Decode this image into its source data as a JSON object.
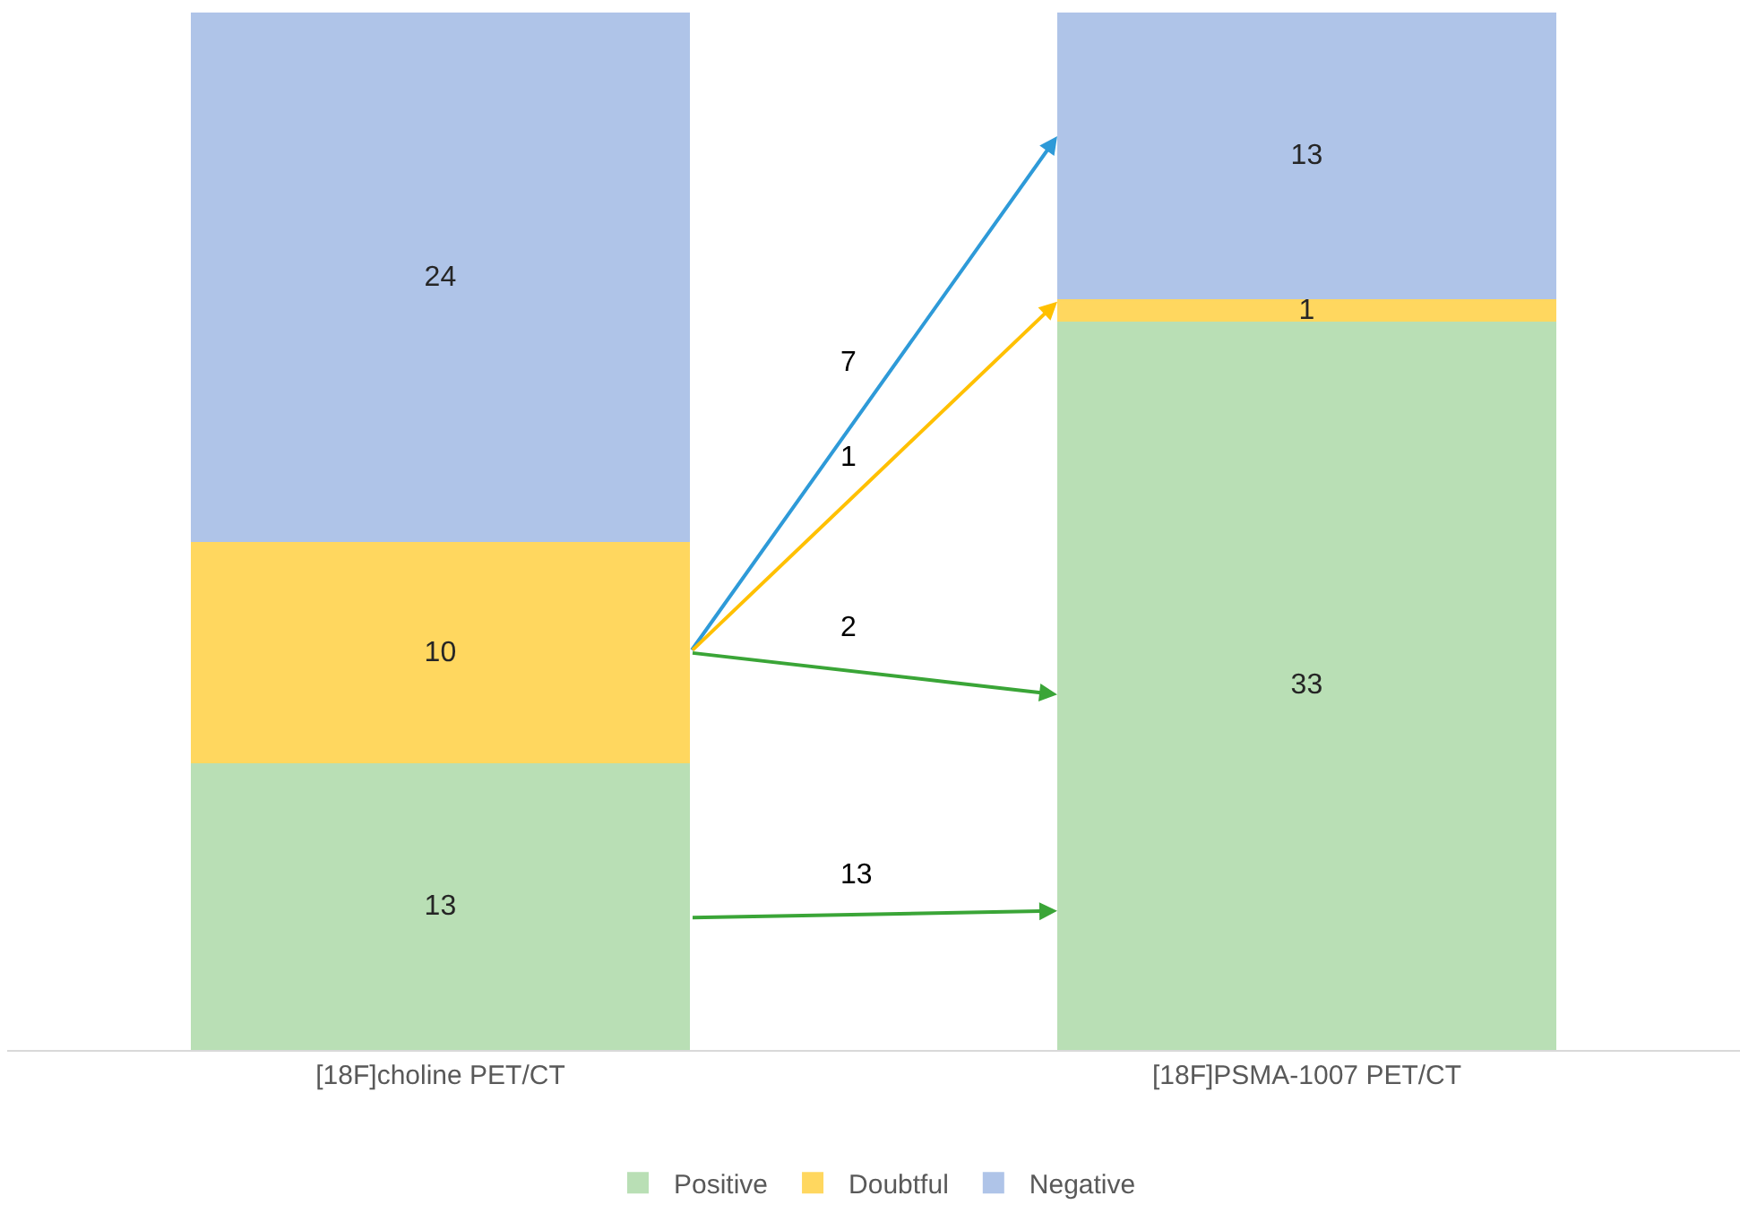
{
  "chart_data": {
    "type": "bar",
    "stacked": true,
    "categories": [
      "[18F]choline PET/CT",
      "[18F]PSMA-1007 PET/CT"
    ],
    "series": [
      {
        "name": "Positive",
        "color": "#b9dfb5",
        "values": [
          13,
          33
        ]
      },
      {
        "name": "Doubtful",
        "color": "#ffd75f",
        "values": [
          10,
          1
        ]
      },
      {
        "name": "Negative",
        "color": "#afc4e8",
        "values": [
          24,
          13
        ]
      }
    ],
    "data_labels": true,
    "legend": "bottom",
    "annotations": [
      "7",
      "1",
      "2",
      "13"
    ]
  }
}
